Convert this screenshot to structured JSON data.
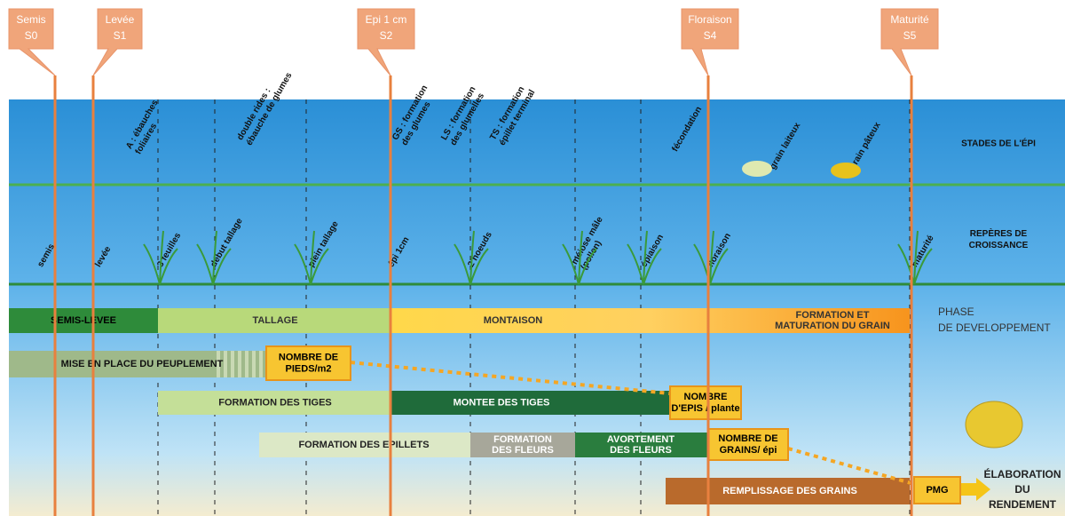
{
  "stage_markers": [
    {
      "lines": [
        "Semis",
        "S0"
      ]
    },
    {
      "lines": [
        "Levée",
        "S1"
      ]
    },
    {
      "lines": [
        "Epi 1 cm",
        "S2"
      ]
    },
    {
      "lines": [
        "Floraison",
        "S4"
      ]
    },
    {
      "lines": [
        "Maturité",
        "S5"
      ]
    }
  ],
  "row_labels": {
    "ear": [
      "STADES DE L'ÉPI"
    ],
    "growth": [
      "REPÈRES DE",
      "CROISSANCE"
    ],
    "phase": [
      "PHASE",
      "DE DEVELOPPEMENT"
    ],
    "yield": [
      "ÉLABORATION",
      "DU",
      "RENDEMENT"
    ]
  },
  "ear_stages": [
    [
      "A : ébauches",
      "foliaires"
    ],
    [
      "double rides :",
      "ébauche de glumes"
    ],
    [
      "GS : formation",
      "des glumes"
    ],
    [
      "LS : formation",
      "des glumelles"
    ],
    [
      "TS : formation",
      "épillet terminal"
    ],
    [
      "fécondation"
    ],
    [
      "grain laiteux"
    ],
    [
      "grain pâteux"
    ]
  ],
  "growth_markers": [
    [
      "semis"
    ],
    [
      "levée"
    ],
    [
      "3 feuilles"
    ],
    [
      "début tallage"
    ],
    [
      "plein tallage"
    ],
    [
      "épi 1cm"
    ],
    [
      "2 noeuds"
    ],
    [
      "méiose mâle",
      "(pollen)"
    ],
    [
      "épiaison"
    ],
    [
      "floraison"
    ],
    [
      "maturité"
    ]
  ],
  "phases": [
    [
      "SEMIS-LEVEE"
    ],
    [
      "TALLAGE"
    ],
    [
      "MONTAISON"
    ],
    [
      "FORMATION ET",
      "MATURATION DU GRAIN"
    ]
  ],
  "processes": [
    [
      "MISE EN PLACE DU PEUPLEMENT"
    ],
    [
      "FORMATION DES TIGES"
    ],
    [
      "MONTEE DES TIGES"
    ],
    [
      "FORMATION DES EPILLETS"
    ],
    [
      "FORMATION",
      "DES FLEURS"
    ],
    [
      "AVORTEMENT",
      "DES FLEURS"
    ],
    [
      "REMPLISSAGE DES GRAINS"
    ]
  ],
  "components": [
    [
      "NOMBRE DE",
      "PIEDS/m2"
    ],
    [
      "NOMBRE",
      "D'EPIS / plante"
    ],
    [
      "NOMBRE DE",
      "GRAINS/ épi"
    ],
    [
      "PMG"
    ]
  ]
}
